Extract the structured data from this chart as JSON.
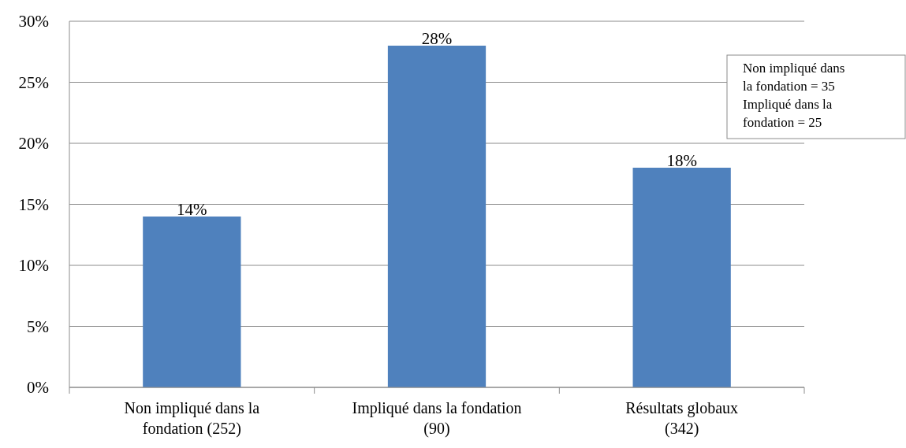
{
  "chart_data": {
    "type": "bar",
    "categories": [
      "Non impliqué dans la\nfondation (252)",
      "Impliqué dans la fondation\n(90)",
      "Résultats globaux\n(342)"
    ],
    "values": [
      14,
      28,
      18
    ],
    "color": "#4f81bd",
    "ylim": [
      0,
      30
    ],
    "yticks": [
      {
        "value": 0,
        "label": "0%"
      },
      {
        "value": 5,
        "label": "5%"
      },
      {
        "value": 10,
        "label": "10%"
      },
      {
        "value": 15,
        "label": "15%"
      },
      {
        "value": 20,
        "label": "20%"
      },
      {
        "value": 25,
        "label": "25%"
      },
      {
        "value": 30,
        "label": "30%"
      }
    ],
    "grid": "y",
    "value_labels": [
      "14%",
      "28%",
      "18%"
    ],
    "annotations": [
      "Non impliqué dans\nla fondation = 35\nImpliqué dans la\nfondation = 25"
    ]
  }
}
